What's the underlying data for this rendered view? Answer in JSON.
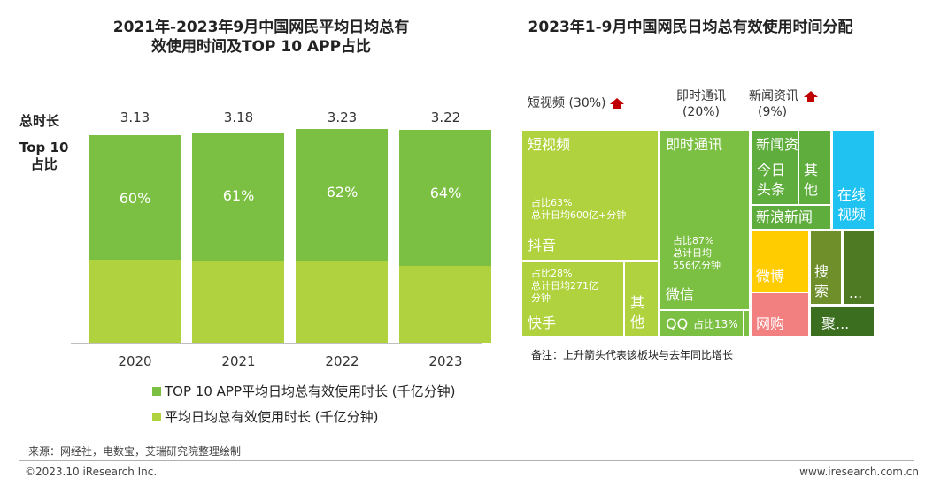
{
  "left": {
    "title_line1": "2021年-2023年9月中国网民平均日均总有",
    "title_line2": "效使用时间及TOP 10 APP占比",
    "row_label_total": "总时长",
    "row_label_top10_a": "Top 10",
    "row_label_top10_b": "占比",
    "legend": [
      {
        "label": "TOP 10 APP平均日均总有效使用时长 (千亿分钟)",
        "color": "#7cc043"
      },
      {
        "label": "平均日均总有效使用时长 (千亿分钟)",
        "color": "#b0d23e"
      }
    ]
  },
  "chart_data": [
    {
      "type": "bar",
      "title": "2021年-2023年9月中国网民平均日均总有效使用时间及TOP 10 APP占比",
      "categories": [
        "2020",
        "2021",
        "2022",
        "2023"
      ],
      "totals": [
        "3.13",
        "3.18",
        "3.23",
        "3.22"
      ],
      "top10_share": [
        "60%",
        "61%",
        "62%",
        "64%"
      ],
      "series": [
        {
          "name": "TOP 10 APP平均日均总有效使用时长 (千亿分钟)",
          "values": [
            1.88,
            1.94,
            2.0,
            2.06
          ]
        },
        {
          "name": "平均日均总有效使用时长 (千亿分钟)",
          "values": [
            3.13,
            3.18,
            3.23,
            3.22
          ]
        }
      ],
      "ylim": [
        0,
        3.8
      ]
    },
    {
      "type": "treemap",
      "title": "2023年1-9月中国网民日均总有效使用时间分配",
      "categories": [
        {
          "name": "短视频",
          "share": "30%"
        },
        {
          "name": "即时通讯",
          "share": "20%"
        },
        {
          "name": "新闻资讯",
          "share": "9%"
        }
      ]
    }
  ],
  "right": {
    "title": "2023年1-9月中国网民日均总有效使用时间分配",
    "cat_short_video": "短视频 (30%)",
    "cat_im_a": "即时通讯",
    "cat_im_b": "(20%)",
    "cat_news_a": "新闻资讯",
    "cat_news_b": "(9%)",
    "tiles": {
      "short_video": "短视频",
      "douyin_share": "占比63%",
      "douyin_total": "总计日均600亿+分钟",
      "douyin": "抖音",
      "kuaishou_share": "占比28%",
      "kuaishou_total_a": "总计日均271亿",
      "kuaishou_total_b": "分钟",
      "kuaishou": "快手",
      "sv_other_a": "其",
      "sv_other_b": "他",
      "im": "即时通讯",
      "wechat_share": "占比87%",
      "wechat_total_a": "总计日均",
      "wechat_total_b": "556亿分钟",
      "wechat": "微信",
      "qq": "QQ",
      "qq_share": "占比13%",
      "news": "新闻资讯",
      "toutiao_a": "今日",
      "toutiao_b": "头条",
      "news_other_a": "其",
      "news_other_b": "他",
      "sina": "新浪新闻",
      "online_video_a": "在线",
      "online_video_b": "视频",
      "weibo": "微博",
      "search_a": "搜",
      "search_b": "索",
      "dots": "...",
      "shopping": "网购",
      "aggregate": "聚..."
    },
    "note": "备注：上升箭头代表该板块与去年同比增长",
    "colors": {
      "short_video": "#b0d23e",
      "im": "#7cc043",
      "news": "#5fad3c",
      "online_video": "#1fc2f0",
      "weibo": "#ffcc00",
      "shopping": "#f28080",
      "search": "#6f8f2a",
      "dark": "#3b6e1f",
      "arrow": "#c00000"
    }
  },
  "footer": {
    "source": "来源：网经社，电数宝，艾瑞研究院整理绘制",
    "copyright": "©2023.10 iResearch Inc.",
    "website": "www.iresearch.com.cn"
  }
}
